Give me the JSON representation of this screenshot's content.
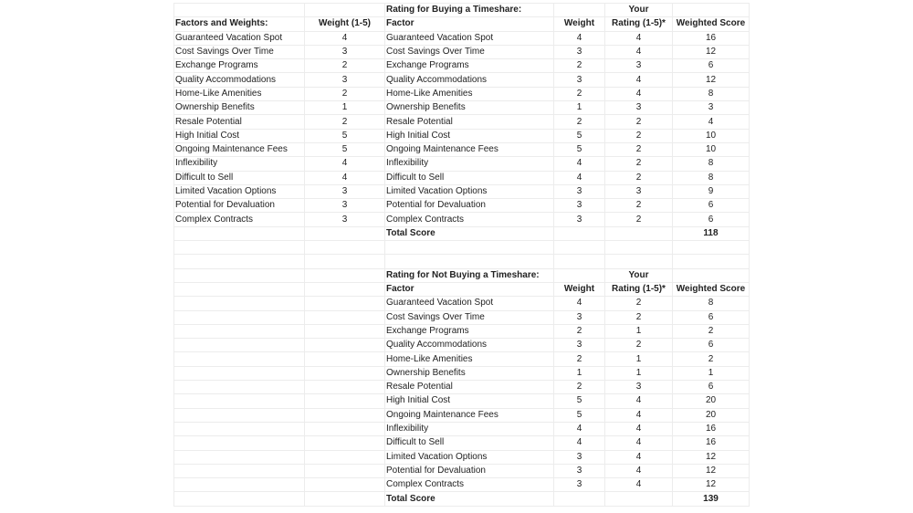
{
  "weights_table": {
    "header": [
      "Factors and Weights:",
      "Weight (1-5)"
    ],
    "rows": [
      [
        "Guaranteed Vacation Spot",
        "4"
      ],
      [
        "Cost Savings Over Time",
        "3"
      ],
      [
        "Exchange Programs",
        "2"
      ],
      [
        "Quality Accommodations",
        "3"
      ],
      [
        "Home-Like Amenities",
        "2"
      ],
      [
        "Ownership Benefits",
        "1"
      ],
      [
        "Resale Potential",
        "2"
      ],
      [
        "High Initial Cost",
        "5"
      ],
      [
        "Ongoing Maintenance Fees",
        "5"
      ],
      [
        "Inflexibility",
        "4"
      ],
      [
        "Difficult to Sell",
        "4"
      ],
      [
        "Limited Vacation Options",
        "3"
      ],
      [
        "Potential for Devaluation",
        "3"
      ],
      [
        "Complex Contracts",
        "3"
      ]
    ]
  },
  "buying": {
    "title": "Rating for Buying a Timeshare:",
    "your_label": "Your",
    "header": [
      "Factor",
      "Weight",
      "Rating (1-5)*",
      "Weighted Score"
    ],
    "rows": [
      [
        "Guaranteed Vacation Spot",
        "4",
        "4",
        "16"
      ],
      [
        "Cost Savings Over Time",
        "3",
        "4",
        "12"
      ],
      [
        "Exchange Programs",
        "2",
        "3",
        "6"
      ],
      [
        "Quality Accommodations",
        "3",
        "4",
        "12"
      ],
      [
        "Home-Like Amenities",
        "2",
        "4",
        "8"
      ],
      [
        "Ownership Benefits",
        "1",
        "3",
        "3"
      ],
      [
        "Resale Potential",
        "2",
        "2",
        "4"
      ],
      [
        "High Initial Cost",
        "5",
        "2",
        "10"
      ],
      [
        "Ongoing Maintenance Fees",
        "5",
        "2",
        "10"
      ],
      [
        "Inflexibility",
        "4",
        "2",
        "8"
      ],
      [
        "Difficult to Sell",
        "4",
        "2",
        "8"
      ],
      [
        "Limited Vacation Options",
        "3",
        "3",
        "9"
      ],
      [
        "Potential for Devaluation",
        "3",
        "2",
        "6"
      ],
      [
        "Complex Contracts",
        "3",
        "2",
        "6"
      ]
    ],
    "total_label": "Total Score",
    "total": "118"
  },
  "not_buying": {
    "title": "Rating for Not Buying a Timeshare:",
    "your_label": "Your",
    "header": [
      "Factor",
      "Weight",
      "Rating (1-5)*",
      "Weighted Score"
    ],
    "rows": [
      [
        "Guaranteed Vacation Spot",
        "4",
        "2",
        "8"
      ],
      [
        "Cost Savings Over Time",
        "3",
        "2",
        "6"
      ],
      [
        "Exchange Programs",
        "2",
        "1",
        "2"
      ],
      [
        "Quality Accommodations",
        "3",
        "2",
        "6"
      ],
      [
        "Home-Like Amenities",
        "2",
        "1",
        "2"
      ],
      [
        "Ownership Benefits",
        "1",
        "1",
        "1"
      ],
      [
        "Resale Potential",
        "2",
        "3",
        "6"
      ],
      [
        "High Initial Cost",
        "5",
        "4",
        "20"
      ],
      [
        "Ongoing Maintenance Fees",
        "5",
        "4",
        "20"
      ],
      [
        "Inflexibility",
        "4",
        "4",
        "16"
      ],
      [
        "Difficult to Sell",
        "4",
        "4",
        "16"
      ],
      [
        "Limited Vacation Options",
        "3",
        "4",
        "12"
      ],
      [
        "Potential for Devaluation",
        "3",
        "4",
        "12"
      ],
      [
        "Complex Contracts",
        "3",
        "4",
        "12"
      ]
    ],
    "total_label": "Total Score",
    "total": "139"
  }
}
